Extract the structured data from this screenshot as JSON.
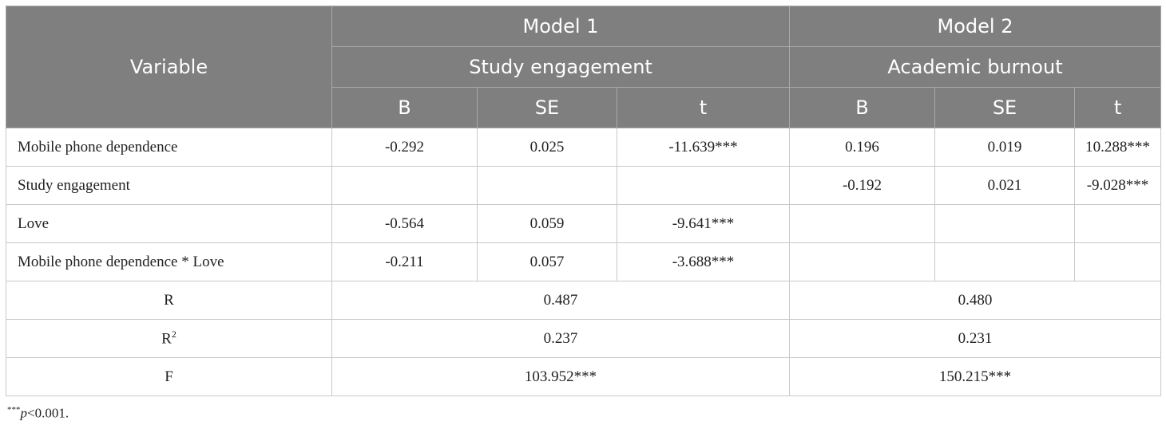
{
  "header": {
    "variable": "Variable",
    "model1": "Model 1",
    "model2": "Model 2",
    "model1_dv": "Study engagement",
    "model2_dv": "Academic burnout",
    "col_b": "B",
    "col_se": "SE",
    "col_t": "t"
  },
  "rows": [
    {
      "variable": "Mobile phone dependence",
      "m1_b": "-0.292",
      "m1_se": "0.025",
      "m1_t": "-11.639***",
      "m2_b": "0.196",
      "m2_se": "0.019",
      "m2_t": "10.288***"
    },
    {
      "variable": "Study engagement",
      "m1_b": "",
      "m1_se": "",
      "m1_t": "",
      "m2_b": "-0.192",
      "m2_se": "0.021",
      "m2_t": "-9.028***"
    },
    {
      "variable": "Love",
      "m1_b": "-0.564",
      "m1_se": "0.059",
      "m1_t": "-9.641***",
      "m2_b": "",
      "m2_se": "",
      "m2_t": ""
    },
    {
      "variable": "Mobile phone dependence * Love",
      "m1_b": "-0.211",
      "m1_se": "0.057",
      "m1_t": "-3.688***",
      "m2_b": "",
      "m2_se": "",
      "m2_t": ""
    }
  ],
  "stats": [
    {
      "label": "R",
      "sup": "",
      "m1": "0.487",
      "m2": "0.480"
    },
    {
      "label": "R",
      "sup": "2",
      "m1": "0.237",
      "m2": "0.231"
    },
    {
      "label": "F",
      "sup": "",
      "m1": "103.952***",
      "m2": "150.215***"
    }
  ],
  "note": {
    "stars": "***",
    "text_italic": "p",
    "text_rest": "<0.001."
  }
}
